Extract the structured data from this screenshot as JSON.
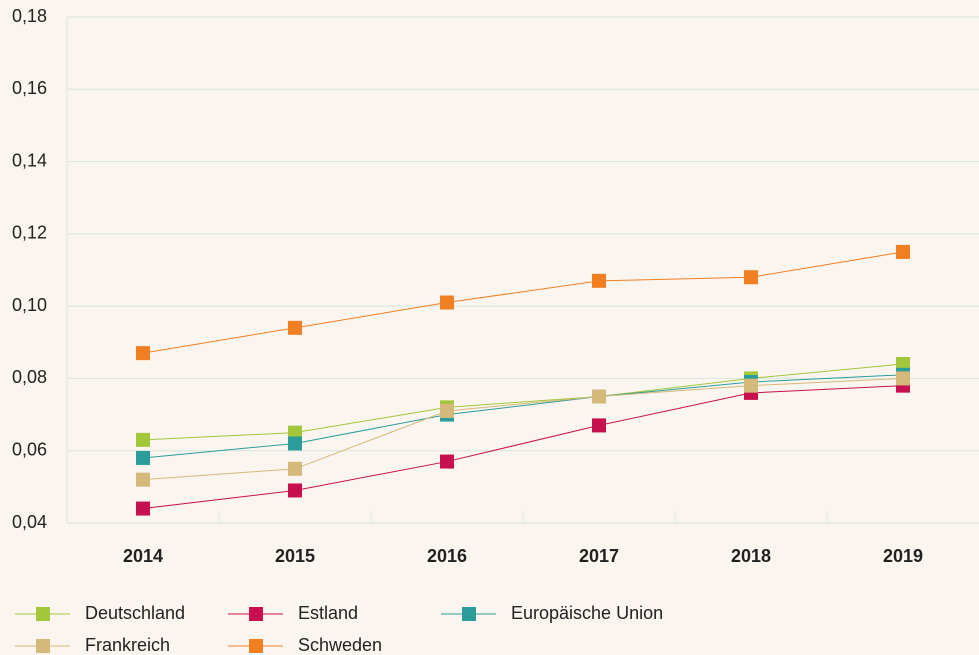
{
  "chart_data": {
    "type": "line",
    "categories": [
      "2014",
      "2015",
      "2016",
      "2017",
      "2018",
      "2019"
    ],
    "series": [
      {
        "name": "Deutschland",
        "color": "#a3c73a",
        "values": [
          0.063,
          0.065,
          0.072,
          0.075,
          0.08,
          0.084
        ]
      },
      {
        "name": "Estland",
        "color": "#c8104e",
        "values": [
          0.044,
          0.049,
          0.057,
          0.067,
          0.076,
          0.078
        ]
      },
      {
        "name": "Europäische Union",
        "color": "#2a9d9a",
        "values": [
          0.058,
          0.062,
          0.07,
          0.075,
          0.079,
          0.081
        ]
      },
      {
        "name": "Frankreich",
        "color": "#d4b97a",
        "values": [
          0.052,
          0.055,
          0.071,
          0.075,
          0.078,
          0.08
        ]
      },
      {
        "name": "Schweden",
        "color": "#f07f22",
        "values": [
          0.087,
          0.094,
          0.101,
          0.107,
          0.108,
          0.115
        ]
      }
    ],
    "ylim": [
      0.04,
      0.18
    ],
    "yticks": [
      {
        "value": 0.04,
        "label": "0,04"
      },
      {
        "value": 0.06,
        "label": "0,06"
      },
      {
        "value": 0.08,
        "label": "0,08"
      },
      {
        "value": 0.1,
        "label": "0,10"
      },
      {
        "value": 0.12,
        "label": "0,12"
      },
      {
        "value": 0.14,
        "label": "0,14"
      },
      {
        "value": 0.16,
        "label": "0,16"
      },
      {
        "value": 0.18,
        "label": "0,18"
      }
    ],
    "grid": true
  }
}
